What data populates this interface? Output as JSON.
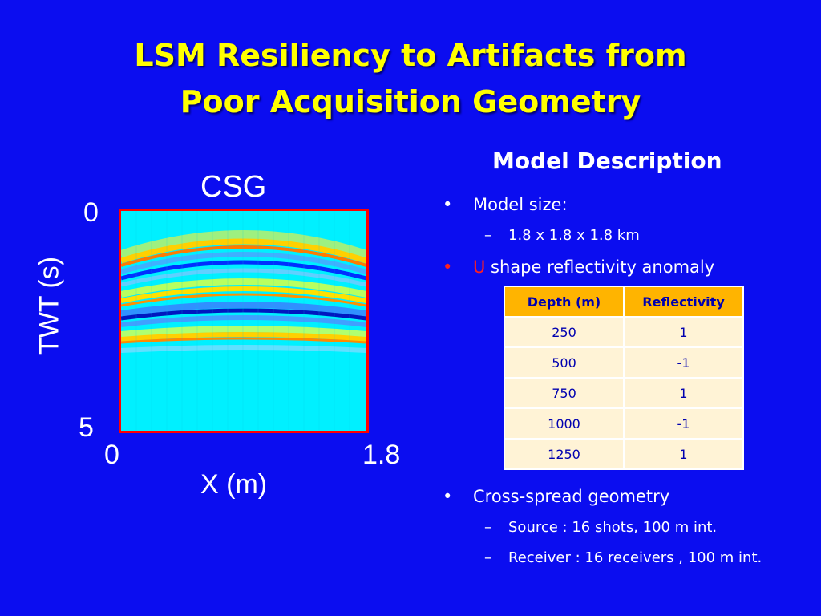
{
  "slide": {
    "title_line1": "LSM Resiliency to Artifacts from",
    "title_line2": "Poor Acquisition Geometry",
    "background_color": "#0b0df0",
    "title_color": "#ffff00"
  },
  "figure": {
    "title": "CSG",
    "ylabel": "TWT (s)",
    "xlabel": "X (m)",
    "y_tick_top": "0",
    "y_tick_bottom": "5",
    "x_tick_left": "0",
    "x_tick_right": "1.8",
    "border_color": "#ff0000"
  },
  "description": {
    "heading": "Model Description",
    "bullet_symbol": "•",
    "dash_symbol": "–",
    "model_size_label": "Model size:",
    "model_size_value": "1.8 x 1.8 x 1.8 km",
    "anomaly_letter": "U",
    "anomaly_text": " shape reflectivity anomaly",
    "table": {
      "headers": [
        "Depth (m)",
        "Reflectivity"
      ],
      "rows": [
        [
          "250",
          "1"
        ],
        [
          "500",
          "-1"
        ],
        [
          "750",
          "1"
        ],
        [
          "1000",
          "-1"
        ],
        [
          "1250",
          "1"
        ]
      ]
    },
    "geometry_label": "Cross-spread geometry",
    "source_text": "Source :  16 shots, 100 m int.",
    "receiver_text": "Receiver :  16 receivers , 100 m int."
  }
}
